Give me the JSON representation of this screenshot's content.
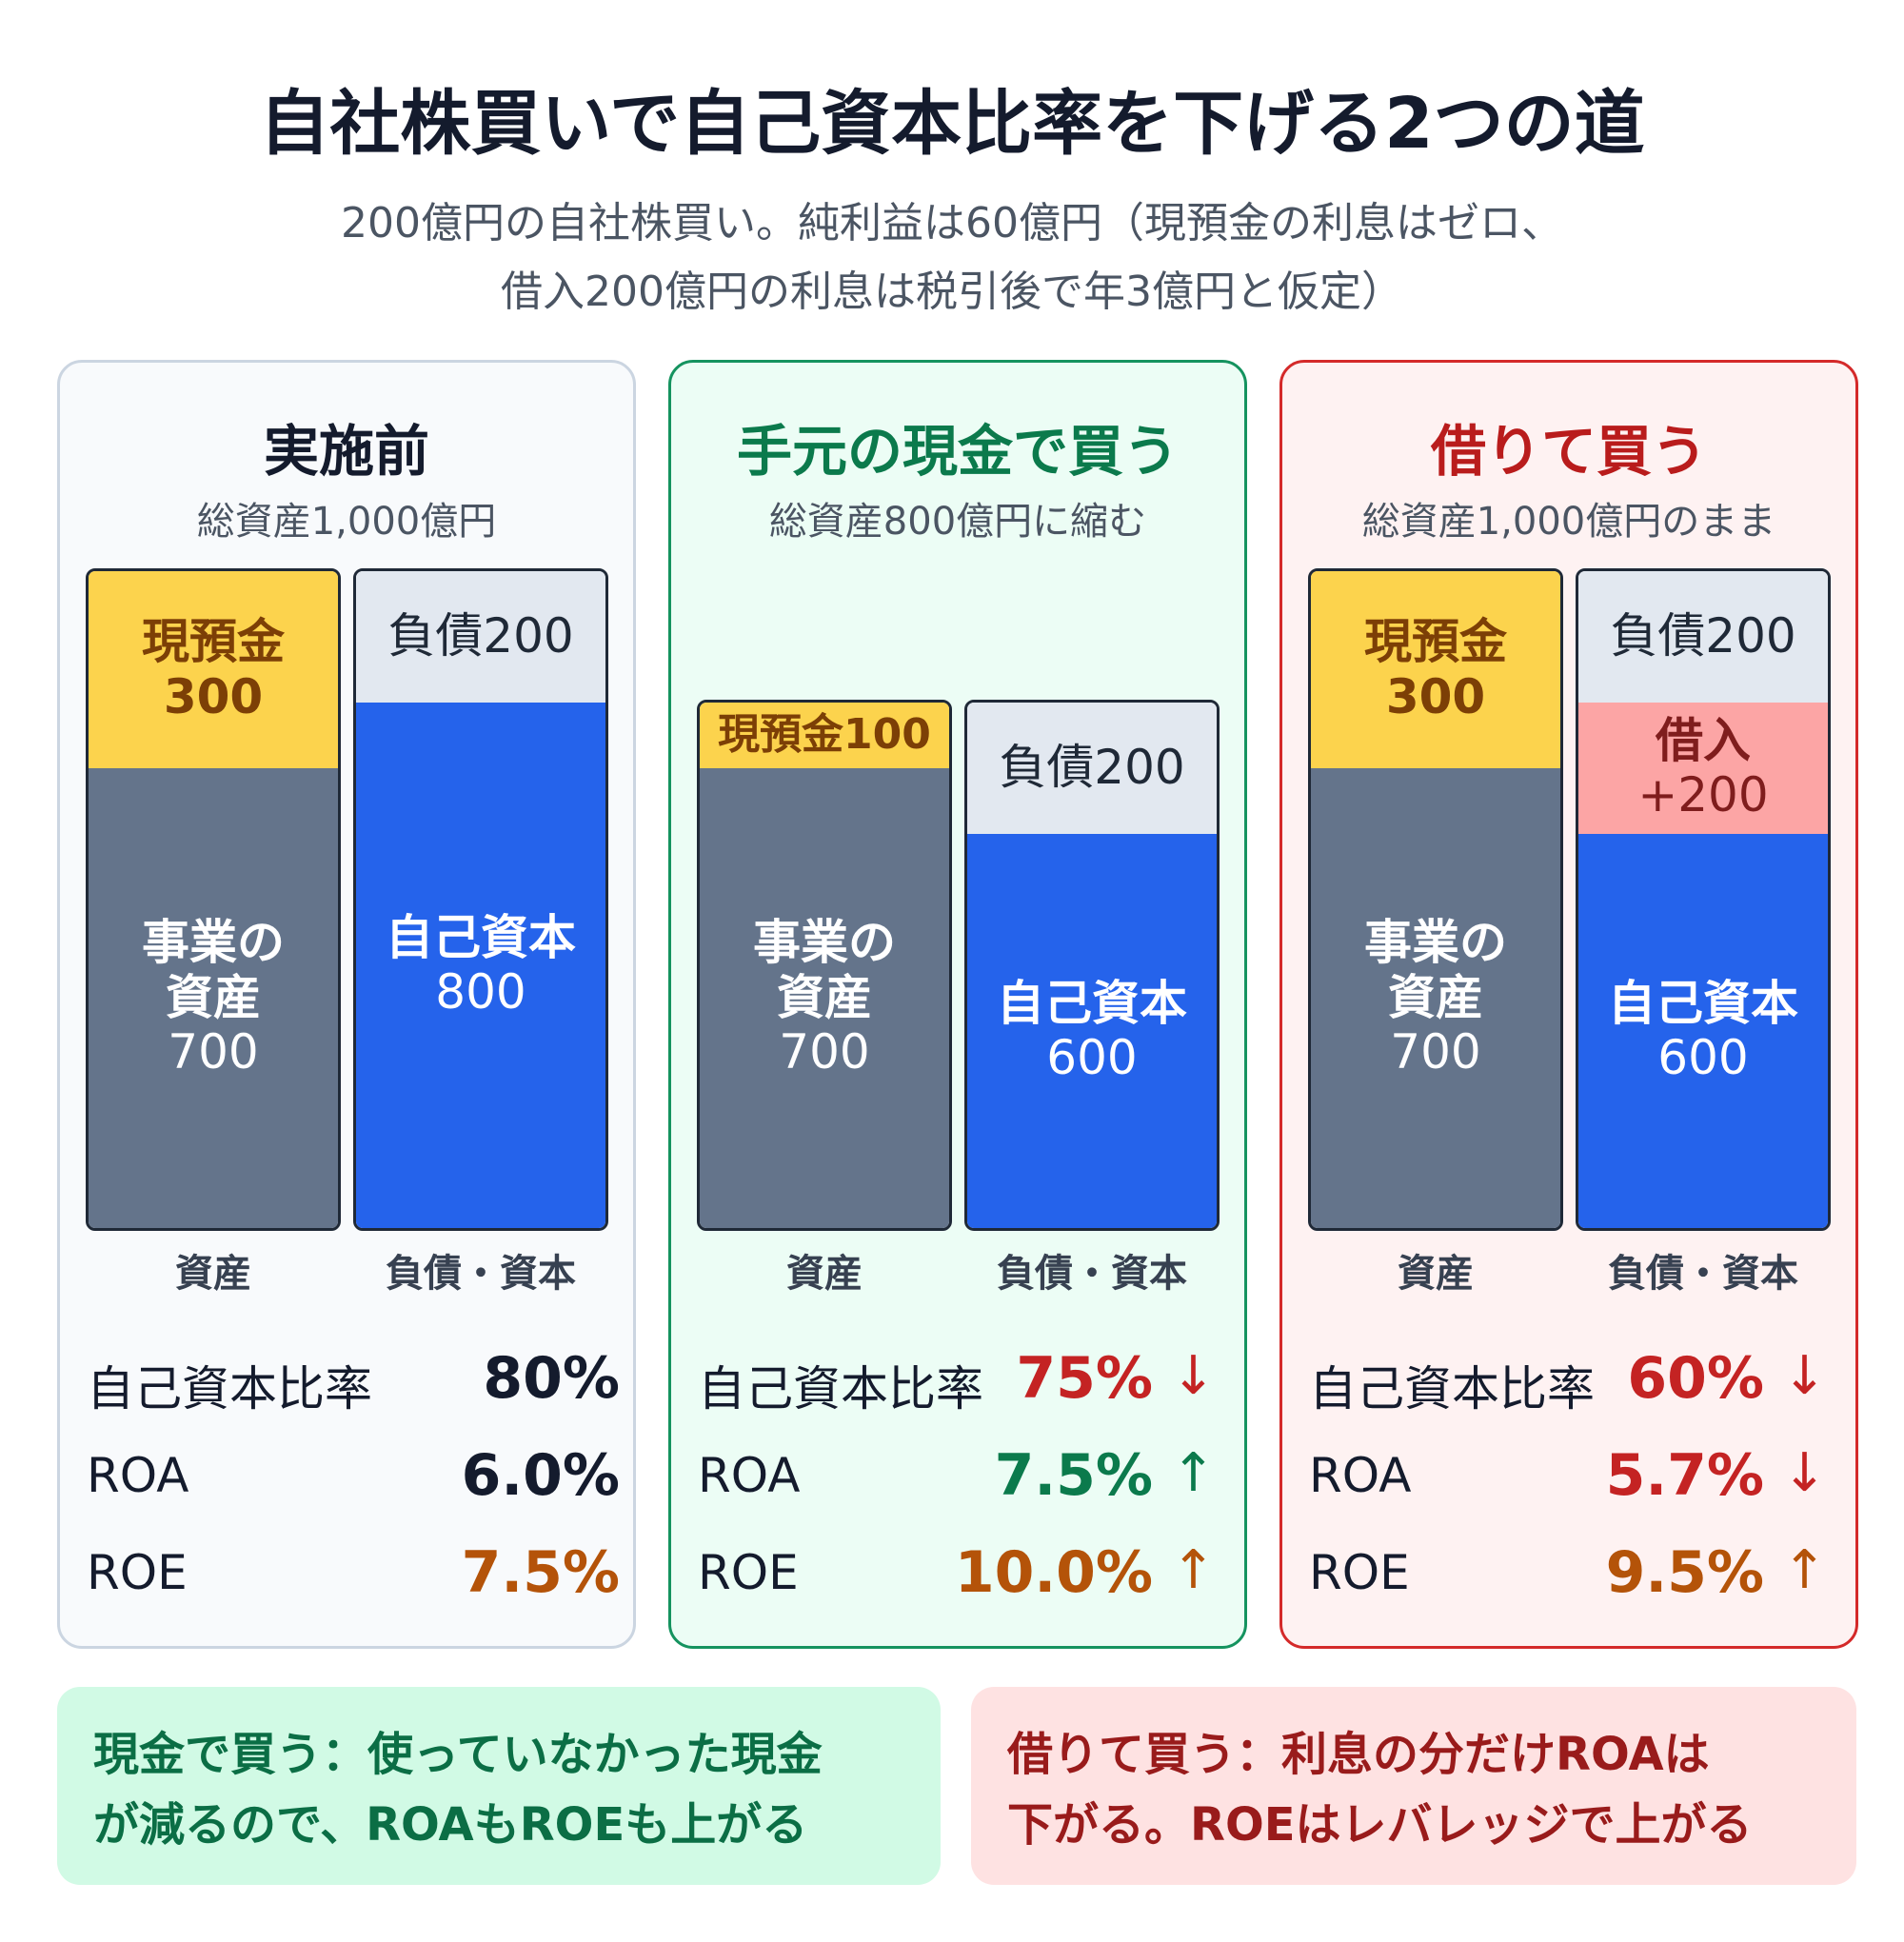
{
  "title": "自社株買いで自己資本比率を下げる2つの道",
  "subtitle_line1": "200億円の自社株買い。純利益は60億円（現預金の利息はゼロ、",
  "subtitle_line2": "借入200億円の利息は税引後で年3億円と仮定）",
  "axis_labels": {
    "assets": "資産",
    "liab_equity": "負債・資本"
  },
  "metric_labels": {
    "equity_ratio": "自己資本比率",
    "roa": "ROA",
    "roe": "ROE"
  },
  "panels": [
    {
      "title": "実施前",
      "subtitle": "総資産1,000億円",
      "assets": {
        "cash_label": "現預金",
        "cash_value": "300",
        "cash": 300,
        "biz_label1": "事業の",
        "biz_label2": "資産",
        "biz_value": "700",
        "biz": 700
      },
      "liab": {
        "debt_label": "負債200",
        "debt": 200,
        "equity_label": "自己資本",
        "equity_value": "800",
        "equity": 800
      },
      "metrics": {
        "equity_ratio": "80%",
        "roa": "6.0%",
        "roe": "7.5%"
      }
    },
    {
      "title": "手元の現金で買う",
      "subtitle": "総資産800億円に縮む",
      "assets": {
        "cash_label": "現預金100",
        "cash": 100,
        "biz_label1": "事業の",
        "biz_label2": "資産",
        "biz_value": "700",
        "biz": 700
      },
      "liab": {
        "debt_label": "負債200",
        "debt": 200,
        "equity_label": "自己資本",
        "equity_value": "600",
        "equity": 600
      },
      "metrics": {
        "equity_ratio": "75%",
        "equity_ratio_arrow": "↓",
        "roa": "7.5%",
        "roa_arrow": "↑",
        "roe": "10.0%",
        "roe_arrow": "↑"
      }
    },
    {
      "title": "借りて買う",
      "subtitle": "総資産1,000億円のまま",
      "assets": {
        "cash_label": "現預金",
        "cash_value": "300",
        "cash": 300,
        "biz_label1": "事業の",
        "biz_label2": "資産",
        "biz_value": "700",
        "biz": 700
      },
      "liab": {
        "debt_label": "負債200",
        "debt": 200,
        "borrow_label": "借入",
        "borrow_value": "+200",
        "borrow": 200,
        "equity_label": "自己資本",
        "equity_value": "600",
        "equity": 600
      },
      "metrics": {
        "equity_ratio": "60%",
        "equity_ratio_arrow": "↓",
        "roa": "5.7%",
        "roa_arrow": "↓",
        "roe": "9.5%",
        "roe_arrow": "↑"
      }
    }
  ],
  "notes": {
    "cash": {
      "line1": "現金で買う：使っていなかった現金",
      "line2": "が減るので、ROAもROEも上がる"
    },
    "borrow": {
      "line1": "借りて買う：利息の分だけROAは",
      "line2": "下がる。ROEはレバレッジで上がる"
    }
  }
}
